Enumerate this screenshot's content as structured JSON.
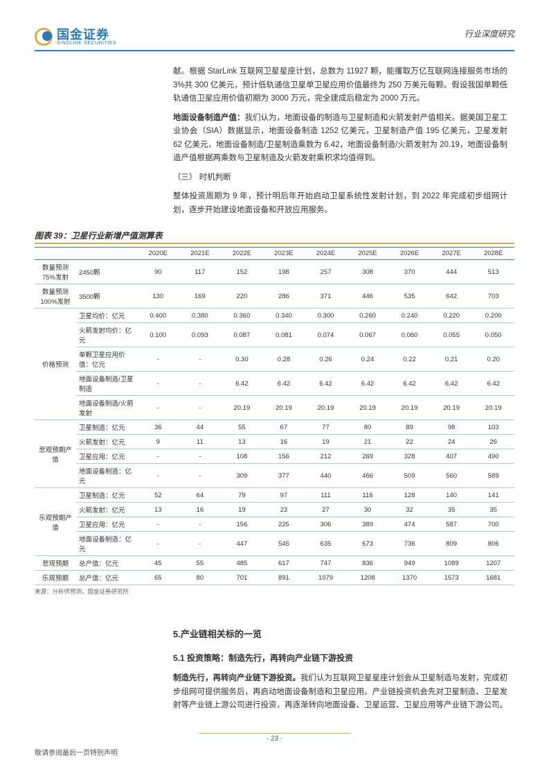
{
  "header": {
    "logo_cn": "国金证券",
    "logo_en": "SINOLINK SECURITIES",
    "doc_type": "行业深度研究"
  },
  "paragraphs": {
    "p1": "献。根据 StarLink 互联网卫星星座计划，总数为 11927 颗，能攫取万亿互联网连接服务市场的 3%共 300 亿美元，预计低轨通信卫星单卫星应用价值最终为 250 万美元每颗。假设我国单颗低轨通信卫星应用价值初期为 3000 万元，完全建成后稳定为 2000 万元。",
    "p2_label": "地面设备制造产值：",
    "p2": "我们认为，地面设备的制造与卫星制造和火箭发射产值相关。据美国卫星工业协会（SIA）数据显示，地面设备制造 1252 亿美元，卫星制造产值 195 亿美元，卫星发射 62 亿美元，地面设备制造/卫星制造乘数为 6.42，地面设备制造/火箭发射为 20.19，地面设备制造产值根据两乘数与卫星制造及火箭发射乘积求均值得到。",
    "p3_label": "（三）   时机判断",
    "p3": "整体投资周期为 9 年，预计明后年开始启动卫星系统性发射计划，到 2022 年完成初步组网计划，逐步开始建设地面设备和开放应用服务。"
  },
  "table": {
    "title": "图表 39：卫星行业新增产值测算表",
    "source": "来源：分析师预测，国金证券研究所",
    "years": [
      "2020E",
      "2021E",
      "2022E",
      "2023E",
      "2024E",
      "2025E",
      "2026E",
      "2027E",
      "2028E"
    ],
    "rows": [
      {
        "group": "数量预测75%发射",
        "label": "2450颗",
        "vals": [
          "90",
          "117",
          "152",
          "198",
          "257",
          "308",
          "370",
          "444",
          "513"
        ]
      },
      {
        "group": "数量预测100%发射",
        "label": "3500颗",
        "vals": [
          "130",
          "169",
          "220",
          "286",
          "371",
          "446",
          "535",
          "642",
          "703"
        ]
      },
      {
        "group": "价格预测",
        "label": "卫星均价：亿元",
        "vals": [
          "0.400",
          "0.380",
          "0.360",
          "0.340",
          "0.300",
          "0.260",
          "0.240",
          "0.220",
          "0.200"
        ]
      },
      {
        "group": "",
        "label": "火箭发射均价：亿元",
        "vals": [
          "0.100",
          "0.093",
          "0.087",
          "0.081",
          "0.074",
          "0.067",
          "0.060",
          "0.055",
          "0.050"
        ]
      },
      {
        "group": "",
        "label": "单颗卫星应用价值：亿元",
        "vals": [
          "-",
          "-",
          "0.30",
          "0.28",
          "0.26",
          "0.24",
          "0.22",
          "0.21",
          "0.20"
        ]
      },
      {
        "group": "",
        "label": "地面设备制造/卫星制造",
        "vals": [
          "-",
          "-",
          "6.42",
          "6.42",
          "6.42",
          "6.42",
          "6.42",
          "6.42",
          "6.42"
        ]
      },
      {
        "group": "",
        "label": "地面设备制造/火箭发射",
        "vals": [
          "-",
          "-",
          "20.19",
          "20.19",
          "20.19",
          "20.19",
          "20.19",
          "20.19",
          "20.19"
        ]
      },
      {
        "group": "悲观预期产值",
        "label": "卫星制造：亿元",
        "vals": [
          "36",
          "44",
          "55",
          "67",
          "77",
          "80",
          "89",
          "98",
          "103"
        ]
      },
      {
        "group": "",
        "label": "火箭发射：亿元",
        "vals": [
          "9",
          "11",
          "13",
          "16",
          "19",
          "21",
          "22",
          "24",
          "26"
        ]
      },
      {
        "group": "",
        "label": "卫星应用：亿元",
        "vals": [
          "-",
          "-",
          "108",
          "156",
          "212",
          "269",
          "328",
          "407",
          "490"
        ]
      },
      {
        "group": "",
        "label": "地面设备制造：亿元",
        "vals": [
          "-",
          "-",
          "309",
          "377",
          "440",
          "466",
          "509",
          "560",
          "589"
        ]
      },
      {
        "group": "乐观预期产值",
        "label": "卫星制造：亿元",
        "vals": [
          "52",
          "64",
          "79",
          "97",
          "111",
          "116",
          "128",
          "140",
          "141"
        ]
      },
      {
        "group": "",
        "label": "火箭发射：亿元",
        "vals": [
          "13",
          "16",
          "19",
          "23",
          "27",
          "30",
          "32",
          "35",
          "35"
        ]
      },
      {
        "group": "",
        "label": "卫星应用：亿元",
        "vals": [
          "-",
          "-",
          "156",
          "225",
          "306",
          "389",
          "474",
          "587",
          "700"
        ]
      },
      {
        "group": "",
        "label": "地面设备制造：亿元",
        "vals": [
          "-",
          "-",
          "447",
          "545",
          "635",
          "673",
          "736",
          "809",
          "806"
        ]
      },
      {
        "group": "悲观预期",
        "label": "总产值：亿元",
        "vals": [
          "45",
          "55",
          "485",
          "617",
          "747",
          "836",
          "949",
          "1089",
          "1207"
        ]
      },
      {
        "group": "乐观预期",
        "label": "总产值：亿元",
        "vals": [
          "65",
          "80",
          "701",
          "891",
          "1079",
          "1208",
          "1370",
          "1573",
          "1681"
        ]
      }
    ],
    "group_spans": {
      "价格预测": 5,
      "悲观预期产值": 4,
      "乐观预期产值": 4
    },
    "heavy_row_indices": [
      1,
      6,
      10,
      14,
      15,
      16
    ]
  },
  "section5": {
    "title": "5.产业链相关标的一览",
    "sub_title": "5.1 投资策略：制造先行，再转向产业链下游投资",
    "para_label": "制造先行，再转向产业链下游投资。",
    "para": "我们认为互联网卫星星座计划会从卫星制造与发射，完成初步组网可提供服务后，再启动地面设备制造和卫星应用。产业链投资机会先对卫星制造、卫星发射等产业链上游公司进行投资，再逐渐转向地面设备、卫星运营、卫星应用等产业链下游公司。"
  },
  "footer": {
    "page": "- 23 -",
    "disclaim": "敬请参阅最后一页特别声明"
  }
}
